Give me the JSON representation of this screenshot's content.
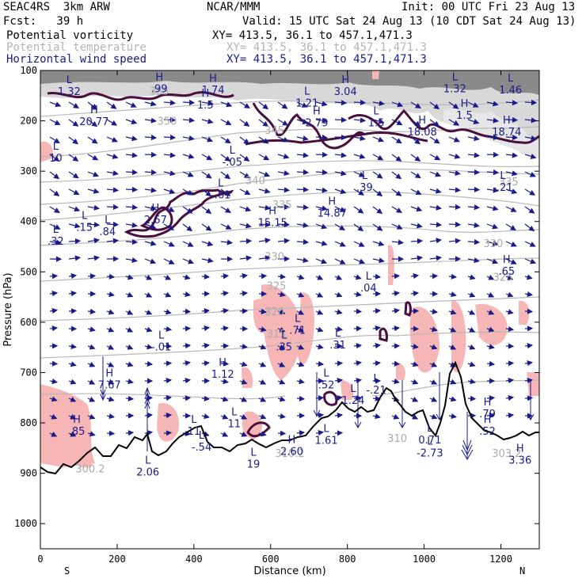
{
  "header": {
    "model": "SEAC4RS  3km ARW",
    "org": "NCAR/MMM",
    "init": "Init: 00 UTC Fri 23 Aug 13",
    "fcst": "Fcst:   39 h",
    "valid": "Valid: 15 UTC Sat 24 Aug 13 (10 CDT Sat 24 Aug 13)"
  },
  "legend": [
    {
      "label": "Potential vorticity",
      "xy": "XY= 413.5, 36.1 to 457.1,471.3",
      "color": "#000000"
    },
    {
      "label": "Potential temperature",
      "xy": "XY= 413.5, 36.1 to 457.1,471.3",
      "color": "#b4b4b4"
    },
    {
      "label": "Horizontal wind speed",
      "xy": "XY= 413.5, 36.1 to 457.1,471.3",
      "color": "#1a1a8c"
    }
  ],
  "chart_data": {
    "type": "cross-section",
    "xlabel": "Distance (km)",
    "ylabel": "Pressure (hPa)",
    "xlim": [
      0,
      1300
    ],
    "ylim": [
      1050,
      100
    ],
    "x_ticks": [
      "0",
      "200",
      "400",
      "600",
      "800",
      "1000",
      "1200"
    ],
    "y_ticks": [
      "100",
      "200",
      "300",
      "400",
      "500",
      "600",
      "700",
      "800",
      "900",
      "1000"
    ],
    "x_endpoints": {
      "left": "S",
      "right": "N"
    },
    "theta_labels": [
      {
        "text": "355",
        "x": 310,
        "p": 140
      },
      {
        "text": "350",
        "x": 330,
        "p": 200
      },
      {
        "text": "345",
        "x": 610,
        "p": 218
      },
      {
        "text": "340",
        "x": 560,
        "p": 318
      },
      {
        "text": "335",
        "x": 630,
        "p": 366
      },
      {
        "text": "330",
        "x": 610,
        "p": 469
      },
      {
        "text": "330",
        "x": 1180,
        "p": 443
      },
      {
        "text": "325",
        "x": 615,
        "p": 527
      },
      {
        "text": "325",
        "x": 1205,
        "p": 510
      },
      {
        "text": "320",
        "x": 610,
        "p": 578
      },
      {
        "text": "315",
        "x": 615,
        "p": 622
      },
      {
        "text": "335",
        "x": 1220,
        "p": 320
      },
      {
        "text": "310",
        "x": 930,
        "p": 830
      },
      {
        "text": "310.2",
        "x": 650,
        "p": 860
      },
      {
        "text": "300.2",
        "x": 130,
        "p": 890
      },
      {
        "text": "303.2",
        "x": 1215,
        "p": 860
      }
    ],
    "extrema": [
      {
        "kind": "L",
        "value": "1.32",
        "x": 75,
        "p": 130
      },
      {
        "kind": "H",
        "value": ".99",
        "x": 310,
        "p": 124
      },
      {
        "kind": "H",
        "value": "1.74",
        "x": 450,
        "p": 127
      },
      {
        "kind": "H",
        "value": "3.04",
        "x": 795,
        "p": 130
      },
      {
        "kind": "L",
        "value": "1.32",
        "x": 1080,
        "p": 124
      },
      {
        "kind": "L",
        "value": "1.46",
        "x": 1225,
        "p": 127
      },
      {
        "kind": "H",
        "value": "1.5",
        "x": 430,
        "p": 157
      },
      {
        "kind": "L",
        "value": "1.21",
        "x": 695,
        "p": 153
      },
      {
        "kind": "H",
        "value": "20.77",
        "x": 140,
        "p": 190
      },
      {
        "kind": "H",
        "value": "2.79",
        "x": 720,
        "p": 192
      },
      {
        "kind": "L",
        "value": "1.5",
        "x": 875,
        "p": 192
      },
      {
        "kind": "H",
        "value": "1.5",
        "x": 1105,
        "p": 177
      },
      {
        "kind": "H",
        "value": "18.08",
        "x": 995,
        "p": 210
      },
      {
        "kind": "H",
        "value": "18.74",
        "x": 1215,
        "p": 210
      },
      {
        "kind": "L",
        "value": "10",
        "x": 40,
        "p": 262
      },
      {
        "kind": "L",
        "value": "-.05",
        "x": 500,
        "p": 270
      },
      {
        "kind": "L",
        "value": "-.61",
        "x": 470,
        "p": 335
      },
      {
        "kind": "L",
        "value": ".39",
        "x": 845,
        "p": 320
      },
      {
        "kind": "L",
        "value": "-.21",
        "x": 1205,
        "p": 320
      },
      {
        "kind": "H",
        "value": "2.67",
        "x": 300,
        "p": 385
      },
      {
        "kind": "H",
        "value": "15.15",
        "x": 605,
        "p": 390
      },
      {
        "kind": "H",
        "value": "14.87",
        "x": 760,
        "p": 371
      },
      {
        "kind": "L",
        "value": ".15",
        "x": 115,
        "p": 400
      },
      {
        "kind": "L",
        "value": ".84",
        "x": 175,
        "p": 408
      },
      {
        "kind": "L",
        "value": ".32",
        "x": 40,
        "p": 427
      },
      {
        "kind": "H",
        "value": ".65",
        "x": 1215,
        "p": 487
      },
      {
        "kind": "L",
        "value": ".04",
        "x": 855,
        "p": 520
      },
      {
        "kind": "L",
        "value": ".71",
        "x": 670,
        "p": 604
      },
      {
        "kind": "L",
        "value": "-.01",
        "x": 315,
        "p": 637
      },
      {
        "kind": "L",
        "value": ".35",
        "x": 635,
        "p": 637
      },
      {
        "kind": "L",
        "value": ".31",
        "x": 775,
        "p": 633
      },
      {
        "kind": "H",
        "value": "1.12",
        "x": 475,
        "p": 691
      },
      {
        "kind": "H",
        "value": "7.67",
        "x": 180,
        "p": 713
      },
      {
        "kind": "L",
        "value": ".52",
        "x": 745,
        "p": 713
      },
      {
        "kind": "L",
        "value": "-.21",
        "x": 875,
        "p": 723
      },
      {
        "kind": "L",
        "value": "1.24",
        "x": 815,
        "p": 743
      },
      {
        "kind": "H",
        "value": ".79",
        "x": 1165,
        "p": 770
      },
      {
        "kind": "H",
        "value": ".52",
        "x": 1165,
        "p": 805
      },
      {
        "kind": "H",
        "value": ".85",
        "x": 95,
        "p": 805
      },
      {
        "kind": "L",
        "value": "11",
        "x": 400,
        "p": 805
      },
      {
        "kind": "L",
        "value": "11",
        "x": 505,
        "p": 790
      },
      {
        "kind": "L",
        "value": "-.54",
        "x": 420,
        "p": 836
      },
      {
        "kind": "H",
        "value": "2.60",
        "x": 655,
        "p": 845
      },
      {
        "kind": "L",
        "value": "1.61",
        "x": 745,
        "p": 823
      },
      {
        "kind": "L",
        "value": "0.71",
        "x": 1015,
        "p": 822
      },
      {
        "kind": "L",
        "value": "-2.73",
        "x": 1015,
        "p": 848
      },
      {
        "kind": "H",
        "value": "3.36",
        "x": 1250,
        "p": 862
      },
      {
        "kind": "L",
        "value": "2.06",
        "x": 280,
        "p": 886
      },
      {
        "kind": "L",
        "value": "19",
        "x": 555,
        "p": 870
      }
    ],
    "grid": false,
    "legend_position": "top-left"
  }
}
